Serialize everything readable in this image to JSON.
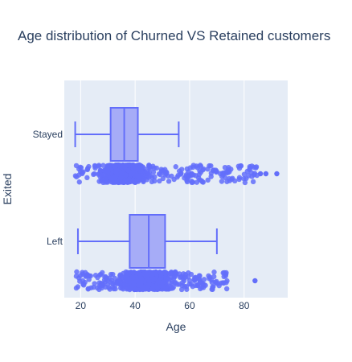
{
  "chart_data": {
    "type": "box",
    "orientation": "horizontal",
    "title": "Age distribution of Churned VS Retained customers",
    "xlabel": "Age",
    "ylabel": "Exited",
    "xlim": [
      14,
      96
    ],
    "xticks": [
      20,
      40,
      60,
      80
    ],
    "categories": [
      "Stayed",
      "Left"
    ],
    "grid": true,
    "series": [
      {
        "name": "Stayed",
        "lower_fence": 18,
        "q1": 31,
        "median": 36,
        "q3": 41,
        "upper_fence": 56,
        "points_range": [
          18,
          85
        ],
        "outliers": [
          86,
          88,
          92
        ]
      },
      {
        "name": "Left",
        "lower_fence": 19,
        "q1": 38,
        "median": 45,
        "q3": 51,
        "upper_fence": 70,
        "points_range": [
          18,
          74
        ],
        "outliers": [
          84
        ]
      }
    ],
    "colors": {
      "box_line": "#636efa",
      "box_fill": "#a6acf7",
      "points": "#636efa",
      "plot_bg": "#e5ecf6",
      "grid": "#ffffff",
      "text": "#2a3f5f"
    }
  }
}
